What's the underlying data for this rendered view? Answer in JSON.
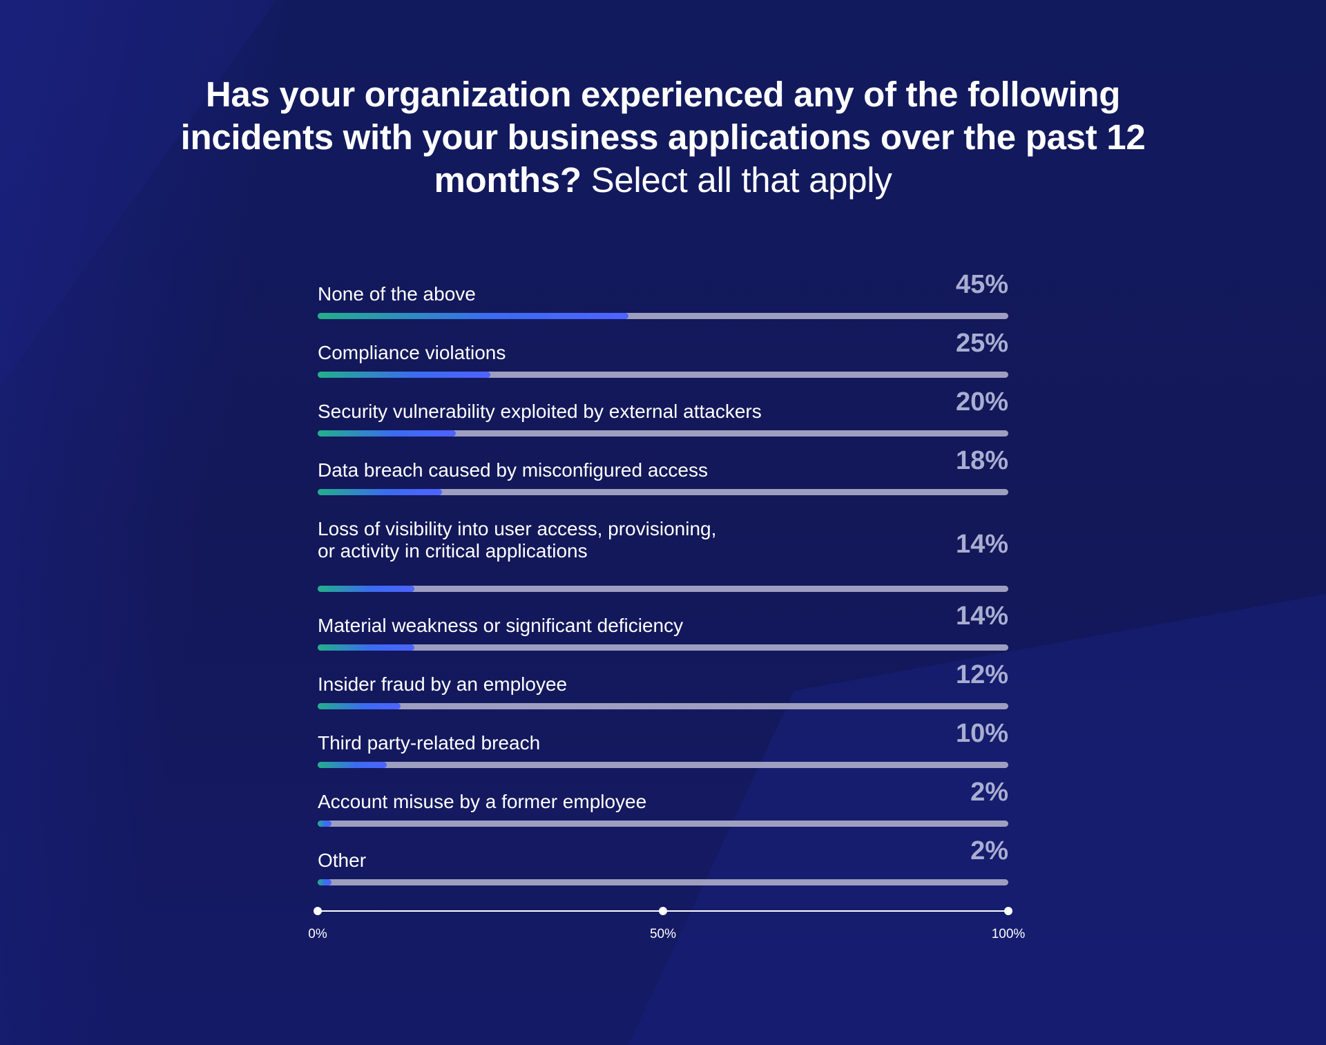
{
  "title": {
    "bold": "Has your organization experienced any of the following incidents with your business applications over the past 12 months?",
    "light": "Select all that apply"
  },
  "chart_data": {
    "type": "bar",
    "orientation": "horizontal",
    "categories": [
      "None of the above",
      "Compliance violations",
      "Security vulnerability exploited by external attackers",
      "Data breach caused by misconfigured access",
      "Loss of visibility into user access, provisioning,\nor activity in critical applications",
      "Material weakness or significant deficiency",
      "Insider fraud by an employee",
      "Third party-related breach",
      "Account misuse by a former employee",
      "Other"
    ],
    "values": [
      45,
      25,
      20,
      18,
      14,
      14,
      12,
      10,
      2,
      2
    ],
    "value_labels": [
      "45%",
      "25%",
      "20%",
      "18%",
      "14%",
      "14%",
      "12%",
      "10%",
      "2%",
      "2%"
    ],
    "xlim": [
      0,
      100
    ],
    "x_ticks": [
      "0%",
      "50%",
      "100%"
    ],
    "grid": false,
    "colors": {
      "bar_start": "#22b08a",
      "bar_end": "#4f63ff",
      "track": "#9e9fc0",
      "value_label": "#a9aed1",
      "background": "#12195a"
    }
  }
}
